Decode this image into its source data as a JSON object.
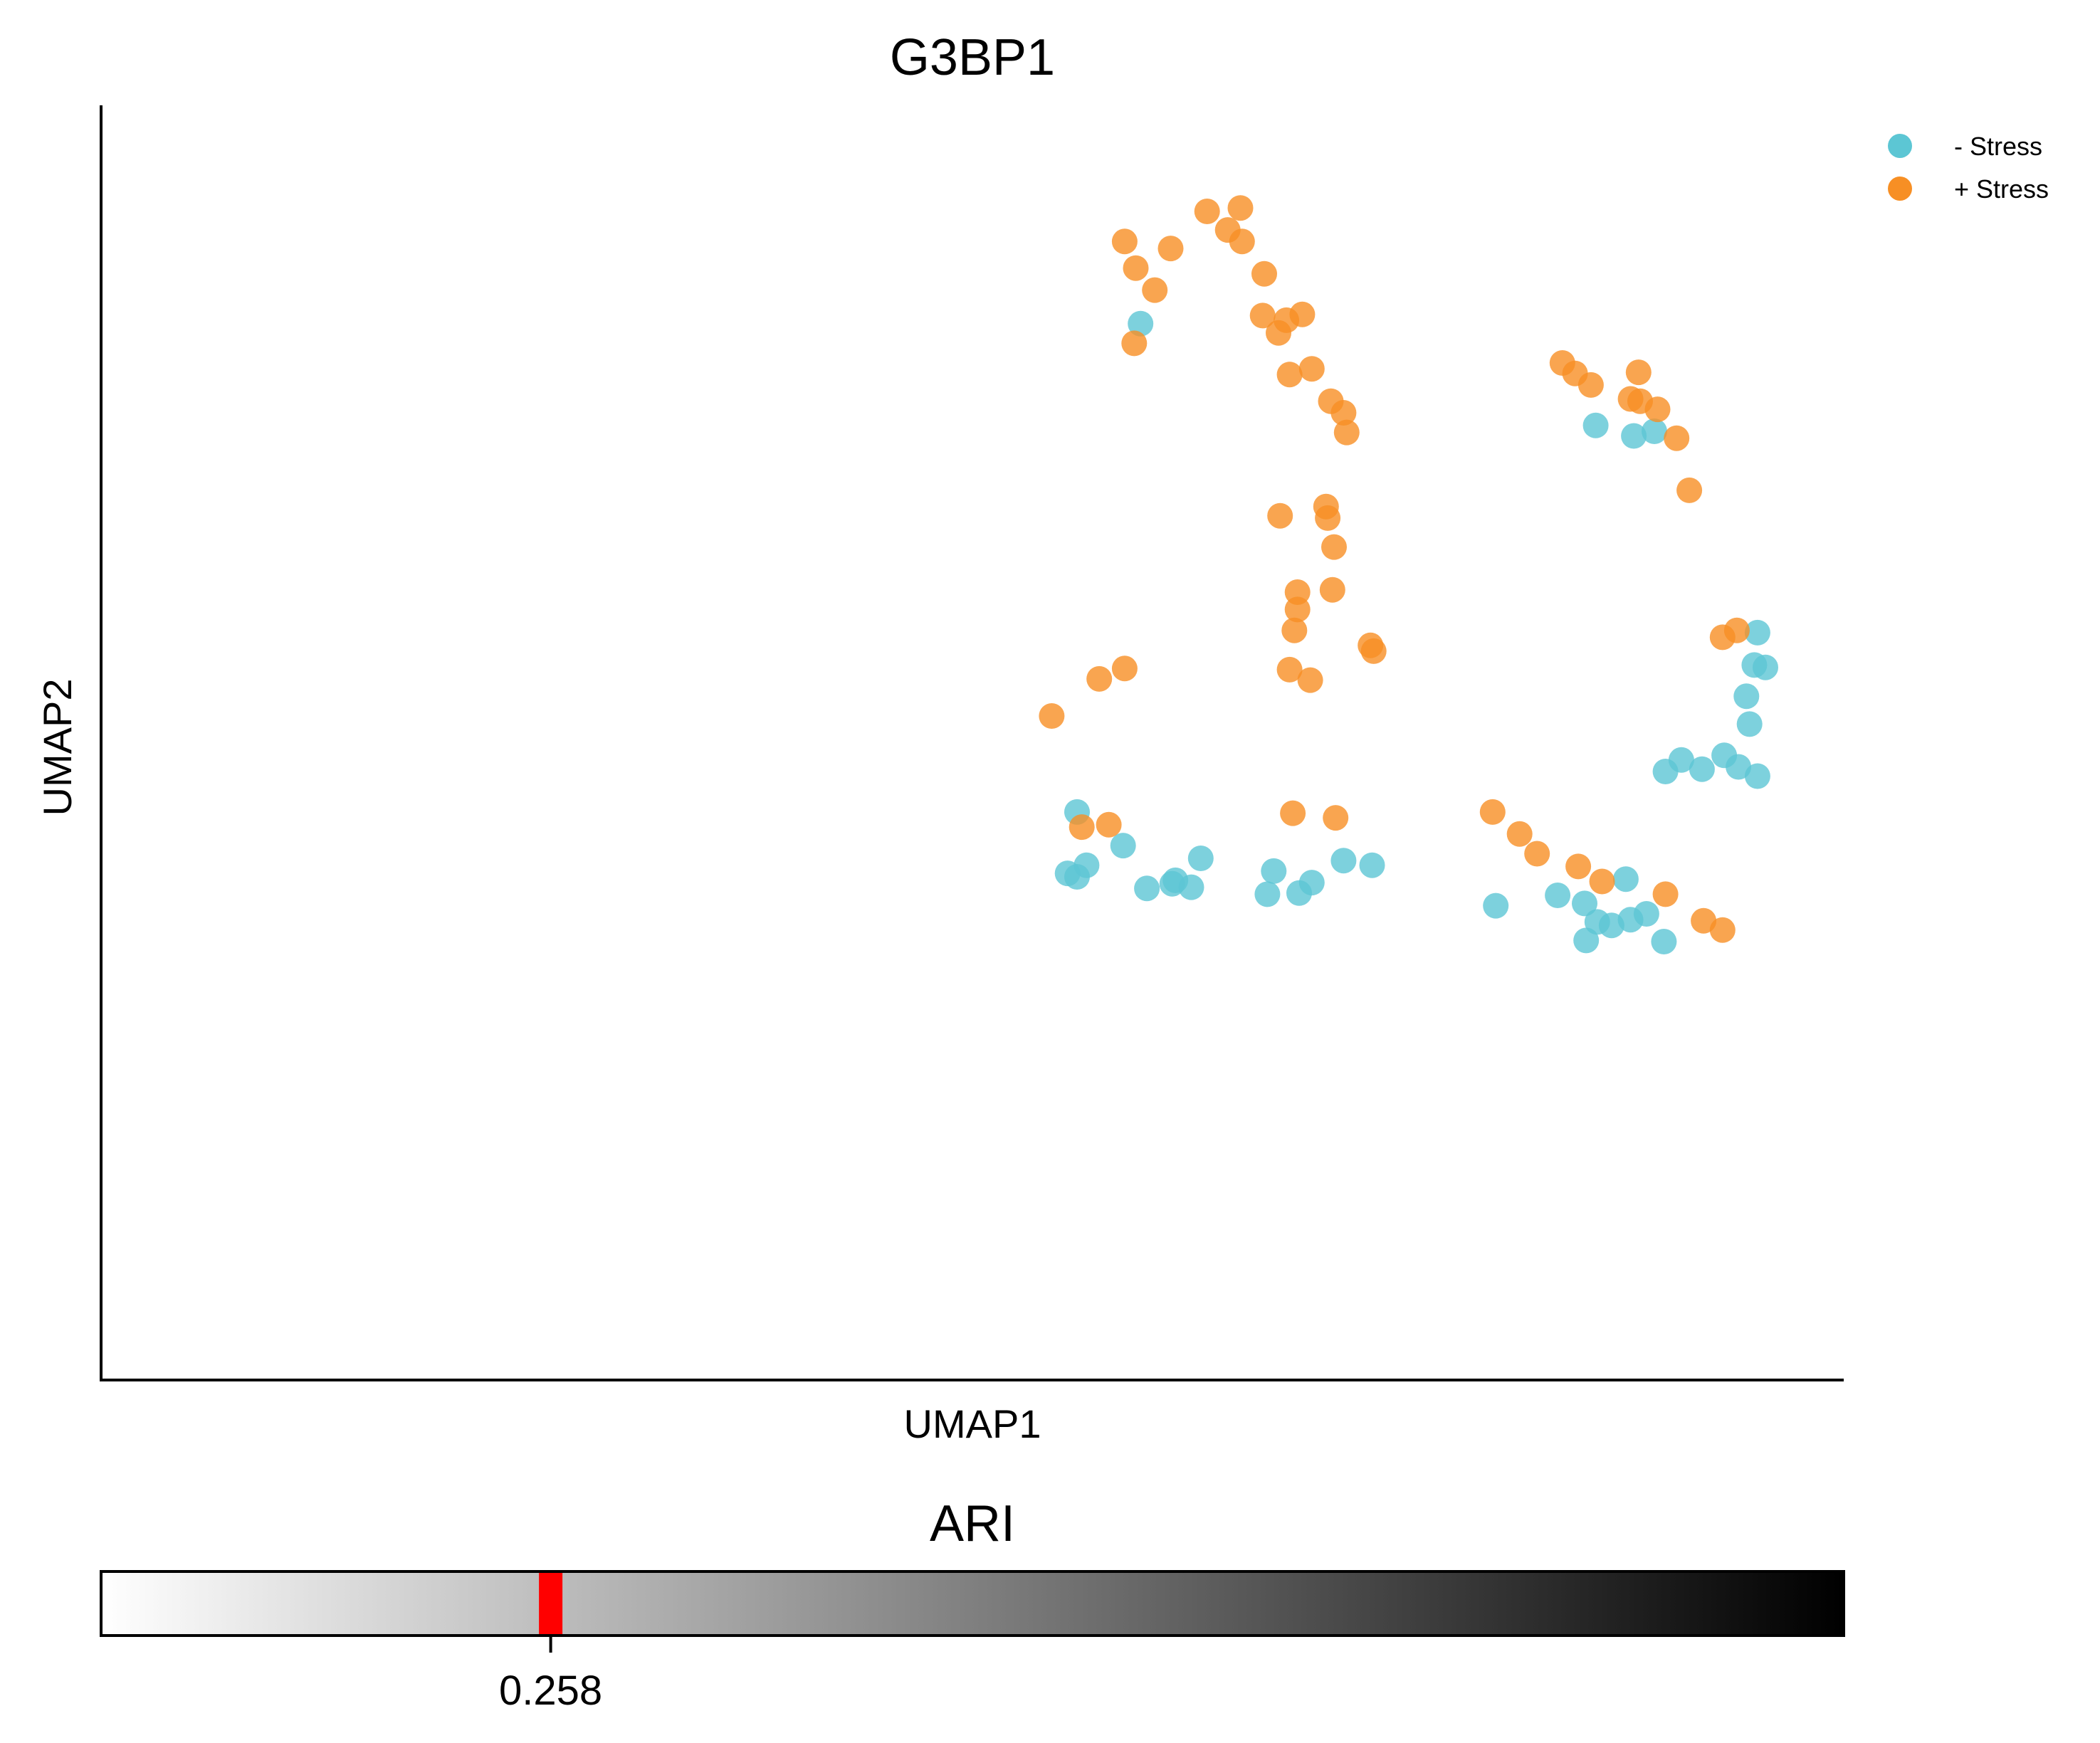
{
  "colors": {
    "minus_stress": "#5cc6d4",
    "plus_stress": "#f78f24",
    "ari_marker": "#ff0000",
    "gradient_start": "#ffffff",
    "gradient_end": "#000000"
  },
  "chart_data": [
    {
      "type": "scatter",
      "title": "G3BP1",
      "xlabel": "UMAP1",
      "ylabel": "UMAP2",
      "axis_ticks": "none",
      "grid": false,
      "legend_placement": "top-right, outside plot",
      "xlim": [
        0,
        100
      ],
      "ylim": [
        0,
        100
      ],
      "series": [
        {
          "name": "- Stress",
          "color": "#5cc6d4",
          "points": [
            [
              60.6,
              86.3
            ],
            [
              56.6,
              44.1
            ],
            [
              57.2,
              39.5
            ],
            [
              56.0,
              38.8
            ],
            [
              59.5,
              41.2
            ],
            [
              61.0,
              37.5
            ],
            [
              56.6,
              38.5
            ],
            [
              62.8,
              38.2
            ],
            [
              62.6,
              37.9
            ],
            [
              63.8,
              37.6
            ],
            [
              64.4,
              40.1
            ],
            [
              68.6,
              37.0
            ],
            [
              69.0,
              39.0
            ],
            [
              70.6,
              37.1
            ],
            [
              71.4,
              38.0
            ],
            [
              73.4,
              39.9
            ],
            [
              75.2,
              39.5
            ],
            [
              83.0,
              36.0
            ],
            [
              86.9,
              36.9
            ],
            [
              88.6,
              36.2
            ],
            [
              89.4,
              34.6
            ],
            [
              90.3,
              34.3
            ],
            [
              91.5,
              34.8
            ],
            [
              92.5,
              35.3
            ],
            [
              93.6,
              32.9
            ],
            [
              88.7,
              33.0
            ],
            [
              91.2,
              38.3
            ],
            [
              93.7,
              47.6
            ],
            [
              94.7,
              48.6
            ],
            [
              96.0,
              47.8
            ],
            [
              97.4,
              49.0
            ],
            [
              98.3,
              48.0
            ],
            [
              99.0,
              51.7
            ],
            [
              99.5,
              47.2
            ],
            [
              98.8,
              54.1
            ],
            [
              99.3,
              56.8
            ],
            [
              100.0,
              56.6
            ],
            [
              99.5,
              59.6
            ],
            [
              89.3,
              77.5
            ],
            [
              93.0,
              77.0
            ],
            [
              91.7,
              76.6
            ]
          ]
        },
        {
          "name": "+ Stress",
          "color": "#f78f24",
          "points": [
            [
              59.6,
              93.4
            ],
            [
              60.3,
              91.1
            ],
            [
              62.5,
              92.8
            ],
            [
              61.5,
              89.2
            ],
            [
              60.2,
              84.6
            ],
            [
              64.8,
              96.0
            ],
            [
              66.1,
              94.4
            ],
            [
              66.9,
              96.3
            ],
            [
              67.0,
              93.4
            ],
            [
              68.4,
              90.6
            ],
            [
              68.3,
              87.0
            ],
            [
              69.3,
              85.5
            ],
            [
              69.8,
              86.6
            ],
            [
              70.8,
              87.1
            ],
            [
              70.0,
              81.9
            ],
            [
              71.4,
              82.4
            ],
            [
              72.6,
              79.6
            ],
            [
              73.4,
              78.6
            ],
            [
              73.6,
              76.9
            ],
            [
              72.3,
              70.5
            ],
            [
              72.4,
              69.5
            ],
            [
              69.4,
              69.7
            ],
            [
              72.8,
              67.0
            ],
            [
              72.7,
              63.3
            ],
            [
              70.5,
              63.1
            ],
            [
              70.3,
              59.8
            ],
            [
              70.0,
              56.4
            ],
            [
              70.5,
              61.6
            ],
            [
              71.3,
              55.5
            ],
            [
              75.1,
              58.5
            ],
            [
              75.3,
              58.0
            ],
            [
              55.0,
              52.4
            ],
            [
              56.9,
              42.8
            ],
            [
              58.6,
              43.0
            ],
            [
              70.2,
              44.0
            ],
            [
              72.9,
              43.6
            ],
            [
              82.8,
              44.1
            ],
            [
              84.5,
              42.2
            ],
            [
              85.6,
              40.5
            ],
            [
              88.2,
              39.4
            ],
            [
              89.7,
              38.1
            ],
            [
              96.1,
              34.7
            ],
            [
              97.3,
              33.9
            ],
            [
              87.2,
              82.9
            ],
            [
              88.0,
              82.0
            ],
            [
              89.0,
              81.0
            ],
            [
              92.0,
              82.1
            ],
            [
              91.5,
              79.8
            ],
            [
              92.1,
              79.6
            ],
            [
              93.2,
              78.9
            ],
            [
              94.4,
              76.4
            ],
            [
              95.2,
              71.9
            ],
            [
              97.3,
              59.2
            ],
            [
              98.2,
              59.8
            ],
            [
              93.7,
              37.0
            ],
            [
              58.0,
              55.6
            ],
            [
              59.6,
              56.5
            ]
          ]
        }
      ]
    },
    {
      "type": "heatmap",
      "subtype": "colorbar",
      "title": "ARI",
      "colormap": "white-to-black",
      "xlim": [
        0,
        1
      ],
      "marker_value": 0.258,
      "tick_label": "0.258"
    }
  ]
}
